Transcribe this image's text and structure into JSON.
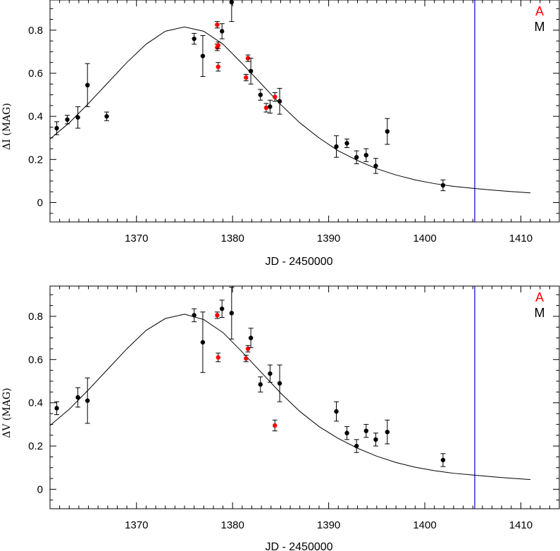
{
  "colors": {
    "series_A": "#ff0000",
    "series_M": "#000000",
    "vline": "#0000cc"
  },
  "chart_data": [
    {
      "type": "scatter",
      "xlabel": "JD - 2450000",
      "ylabel": "ΔI (MAG)",
      "xlim": [
        1361,
        1414
      ],
      "ylim": [
        -0.09,
        0.94
      ],
      "xticks": [
        1370,
        1380,
        1390,
        1400,
        1410
      ],
      "yticks": [
        0,
        0.2,
        0.4,
        0.6,
        0.8
      ],
      "ytick_labels": [
        "0",
        "0.2",
        "0.4",
        "0.6",
        "0.8"
      ],
      "legend": [
        "A",
        "M"
      ],
      "legend_position": "top-right",
      "vline_x": 1405.2,
      "model_curve": {
        "x": [
          1361,
          1363,
          1365,
          1367,
          1369,
          1371,
          1373,
          1375,
          1377,
          1379,
          1381,
          1383,
          1385,
          1387,
          1389,
          1391,
          1393,
          1395,
          1397,
          1399,
          1401,
          1403,
          1405,
          1407,
          1409,
          1411
        ],
        "y": [
          0.295,
          0.37,
          0.46,
          0.555,
          0.65,
          0.735,
          0.795,
          0.815,
          0.795,
          0.735,
          0.645,
          0.55,
          0.455,
          0.37,
          0.3,
          0.24,
          0.195,
          0.157,
          0.128,
          0.105,
          0.088,
          0.075,
          0.066,
          0.058,
          0.051,
          0.045
        ]
      },
      "series": [
        {
          "name": "A",
          "points": [
            {
              "x": 1378.4,
              "y": 0.825,
              "err": 0.015
            },
            {
              "x": 1378.4,
              "y": 0.72,
              "err": 0.015
            },
            {
              "x": 1378.5,
              "y": 0.73,
              "err": 0.015
            },
            {
              "x": 1378.5,
              "y": 0.63,
              "err": 0.02
            },
            {
              "x": 1381.4,
              "y": 0.58,
              "err": 0.015
            },
            {
              "x": 1381.6,
              "y": 0.67,
              "err": 0.015
            },
            {
              "x": 1383.5,
              "y": 0.44,
              "err": 0.02
            },
            {
              "x": 1384.4,
              "y": 0.49,
              "err": 0.02
            }
          ]
        },
        {
          "name": "M",
          "points": [
            {
              "x": 1361.7,
              "y": 0.345,
              "err": 0.03
            },
            {
              "x": 1362.8,
              "y": 0.385,
              "err": 0.02
            },
            {
              "x": 1363.9,
              "y": 0.395,
              "err": 0.05
            },
            {
              "x": 1364.9,
              "y": 0.545,
              "err": 0.1
            },
            {
              "x": 1366.9,
              "y": 0.4,
              "err": 0.02
            },
            {
              "x": 1376.0,
              "y": 0.76,
              "err": 0.025
            },
            {
              "x": 1376.9,
              "y": 0.68,
              "err": 0.095
            },
            {
              "x": 1378.9,
              "y": 0.795,
              "err": 0.035
            },
            {
              "x": 1379.9,
              "y": 0.93,
              "err": 0.09
            },
            {
              "x": 1381.9,
              "y": 0.61,
              "err": 0.06
            },
            {
              "x": 1382.9,
              "y": 0.5,
              "err": 0.025
            },
            {
              "x": 1383.9,
              "y": 0.445,
              "err": 0.03
            },
            {
              "x": 1384.9,
              "y": 0.47,
              "err": 0.06
            },
            {
              "x": 1390.8,
              "y": 0.26,
              "err": 0.05
            },
            {
              "x": 1391.9,
              "y": 0.275,
              "err": 0.02
            },
            {
              "x": 1392.9,
              "y": 0.21,
              "err": 0.03
            },
            {
              "x": 1393.9,
              "y": 0.22,
              "err": 0.03
            },
            {
              "x": 1394.9,
              "y": 0.17,
              "err": 0.035
            },
            {
              "x": 1396.1,
              "y": 0.33,
              "err": 0.06
            },
            {
              "x": 1401.9,
              "y": 0.08,
              "err": 0.025
            }
          ]
        }
      ]
    },
    {
      "type": "scatter",
      "xlabel": "JD - 2450000",
      "ylabel": "ΔV (MAG)",
      "xlim": [
        1361,
        1414
      ],
      "ylim": [
        -0.09,
        0.94
      ],
      "xticks": [
        1370,
        1380,
        1390,
        1400,
        1410
      ],
      "yticks": [
        0,
        0.2,
        0.4,
        0.6,
        0.8
      ],
      "ytick_labels": [
        "0",
        "0.2",
        "0.4",
        "0.6",
        "0.8"
      ],
      "legend": [
        "A",
        "M"
      ],
      "legend_position": "top-right",
      "vline_x": 1405.2,
      "model_curve": {
        "x": [
          1361,
          1363,
          1365,
          1367,
          1369,
          1371,
          1373,
          1375,
          1377,
          1379,
          1381,
          1383,
          1385,
          1387,
          1389,
          1391,
          1393,
          1395,
          1397,
          1399,
          1401,
          1403,
          1405,
          1407,
          1409,
          1411
        ],
        "y": [
          0.295,
          0.37,
          0.46,
          0.555,
          0.65,
          0.735,
          0.79,
          0.81,
          0.785,
          0.725,
          0.635,
          0.54,
          0.445,
          0.36,
          0.29,
          0.235,
          0.19,
          0.153,
          0.124,
          0.102,
          0.086,
          0.074,
          0.066,
          0.058,
          0.051,
          0.045
        ]
      },
      "series": [
        {
          "name": "A",
          "points": [
            {
              "x": 1378.4,
              "y": 0.805,
              "err": 0.015
            },
            {
              "x": 1378.5,
              "y": 0.61,
              "err": 0.02
            },
            {
              "x": 1381.4,
              "y": 0.605,
              "err": 0.015
            },
            {
              "x": 1381.6,
              "y": 0.65,
              "err": 0.015
            },
            {
              "x": 1384.4,
              "y": 0.295,
              "err": 0.025
            }
          ]
        },
        {
          "name": "M",
          "points": [
            {
              "x": 1361.7,
              "y": 0.375,
              "err": 0.03
            },
            {
              "x": 1363.9,
              "y": 0.425,
              "err": 0.045
            },
            {
              "x": 1364.9,
              "y": 0.41,
              "err": 0.105
            },
            {
              "x": 1376.0,
              "y": 0.805,
              "err": 0.03
            },
            {
              "x": 1376.9,
              "y": 0.68,
              "err": 0.14
            },
            {
              "x": 1378.9,
              "y": 0.835,
              "err": 0.04
            },
            {
              "x": 1379.9,
              "y": 0.815,
              "err": 0.12
            },
            {
              "x": 1381.9,
              "y": 0.7,
              "err": 0.045
            },
            {
              "x": 1382.9,
              "y": 0.485,
              "err": 0.035
            },
            {
              "x": 1383.9,
              "y": 0.535,
              "err": 0.04
            },
            {
              "x": 1384.9,
              "y": 0.49,
              "err": 0.085
            },
            {
              "x": 1390.8,
              "y": 0.36,
              "err": 0.045
            },
            {
              "x": 1391.9,
              "y": 0.26,
              "err": 0.03
            },
            {
              "x": 1392.9,
              "y": 0.2,
              "err": 0.03
            },
            {
              "x": 1393.9,
              "y": 0.27,
              "err": 0.03
            },
            {
              "x": 1394.9,
              "y": 0.23,
              "err": 0.03
            },
            {
              "x": 1396.1,
              "y": 0.265,
              "err": 0.055
            },
            {
              "x": 1401.9,
              "y": 0.135,
              "err": 0.03
            }
          ]
        }
      ]
    }
  ]
}
